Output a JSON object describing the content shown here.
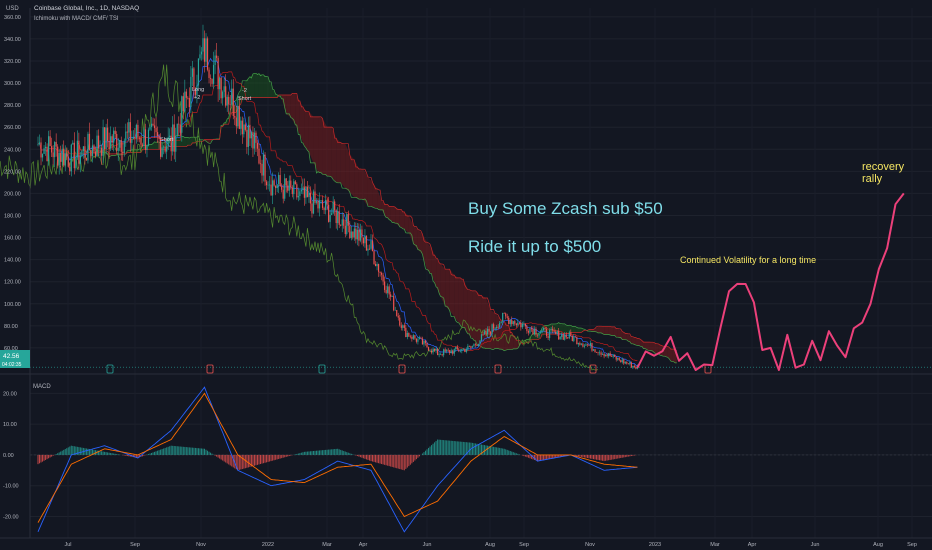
{
  "header": {
    "currency": "USD",
    "symbol_line": "Coinbase Global, Inc., 1D, NASDAQ",
    "indicators_line": "Ichimoku with MACD/ CMF/ TSI"
  },
  "price_badge": {
    "price": "42.56",
    "countdown": "04:02:35",
    "color": "#26a69a"
  },
  "annotations": {
    "text1": "Buy Some Zcash sub  $50",
    "text2": "Ride it up to $500",
    "text3": "Continued Volatility for a long time",
    "text4_line1": "recovery",
    "text4_line2": "rally",
    "signal_long": [
      "Long",
      "+2"
    ],
    "signal_short": [
      "-2",
      "Short"
    ],
    "signal_small": "Short"
  },
  "colors": {
    "background": "#131722",
    "up": "#26a69a",
    "down": "#ef5350",
    "kumo_bull": "#1b5e20",
    "kumo_bear": "#8b1d1d",
    "annot_cyan": "#80deea",
    "annot_yellow": "#f5e663",
    "projection": "#ec407a",
    "macd_line": "#2962ff",
    "signal_line": "#ff6d00"
  },
  "chart_data": [
    {
      "type": "candlestick",
      "title": "Coinbase Global, Inc., 1D, NASDAQ",
      "ylabel": "USD",
      "y_ticks": [
        "360.00",
        "340.00",
        "320.00",
        "300.00",
        "280.00",
        "260.00",
        "240.00",
        "220.00",
        "200.00",
        "180.00",
        "160.00",
        "140.00",
        "120.00",
        "100.00",
        "80.00",
        "60.00"
      ],
      "ylim": [
        40,
        368
      ],
      "x_labels": [
        "Jul",
        "Sep",
        "Nov",
        "2022",
        "Mar",
        "Apr",
        "Jun",
        "Aug",
        "Sep",
        "Nov",
        "2023",
        "Mar",
        "Apr",
        "Jun",
        "Aug",
        "Sep"
      ],
      "price_path": {
        "x": [
          "Jun 2021",
          "Jul 2021",
          "Aug 2021",
          "Sep 2021",
          "Oct 2021",
          "Nov 2021",
          "Dec 2021",
          "Jan 2022",
          "Feb 2022",
          "Mar 2022",
          "Apr 2022",
          "May 2022",
          "Jun 2022",
          "Jul 2022",
          "Aug 2022",
          "Sep 2022",
          "Oct 2022",
          "Nov 2022",
          "Dec 2022"
        ],
        "close": [
          245,
          232,
          248,
          252,
          245,
          330,
          275,
          210,
          195,
          180,
          150,
          75,
          55,
          60,
          88,
          75,
          70,
          55,
          42
        ]
      },
      "projection": {
        "x": [
          "Dec 2022",
          "Jan 2023",
          "Feb 2023",
          "Mar 2023",
          "Apr 2023",
          "May 2023",
          "Jun 2023",
          "Jul 2023",
          "Aug 2023"
        ],
        "y": [
          42,
          70,
          45,
          118,
          60,
          45,
          62,
          100,
          200
        ]
      },
      "ichimoku": [
        "tenkan",
        "kijun",
        "chikou",
        "senkou_a",
        "senkou_b",
        "kumo"
      ],
      "current_price": 42.56
    },
    {
      "type": "histogram+line",
      "title": "MACD",
      "y_ticks": [
        "20.00",
        "10.00",
        "0.00",
        "-10.00",
        "-20.00"
      ],
      "ylim": [
        -27,
        25
      ],
      "series": [
        {
          "name": "MACD",
          "x": [
            "Jun 2021",
            "Jul 2021",
            "Aug 2021",
            "Sep 2021",
            "Oct 2021",
            "Nov 2021",
            "Dec 2021",
            "Jan 2022",
            "Feb 2022",
            "Mar 2022",
            "Apr 2022",
            "May 2022",
            "Jun 2022",
            "Jul 2022",
            "Aug 2022",
            "Sep 2022",
            "Oct 2022",
            "Nov 2022",
            "Dec 2022"
          ],
          "values": [
            -25,
            0,
            3,
            -1,
            8,
            22,
            -5,
            -10,
            -8,
            -2,
            -5,
            -25,
            -10,
            2,
            8,
            -2,
            0,
            -5,
            -4
          ]
        },
        {
          "name": "Signal",
          "x": [
            "Jun 2021",
            "Jul 2021",
            "Aug 2021",
            "Sep 2021",
            "Oct 2021",
            "Nov 2021",
            "Dec 2021",
            "Jan 2022",
            "Feb 2022",
            "Mar 2022",
            "Apr 2022",
            "May 2022",
            "Jun 2022",
            "Jul 2022",
            "Aug 2022",
            "Sep 2022",
            "Oct 2022",
            "Nov 2022",
            "Dec 2022"
          ],
          "values": [
            -22,
            -3,
            2,
            0,
            5,
            20,
            0,
            -8,
            -9,
            -4,
            -3,
            -20,
            -15,
            -2,
            6,
            0,
            0,
            -3,
            -4
          ]
        }
      ]
    }
  ]
}
